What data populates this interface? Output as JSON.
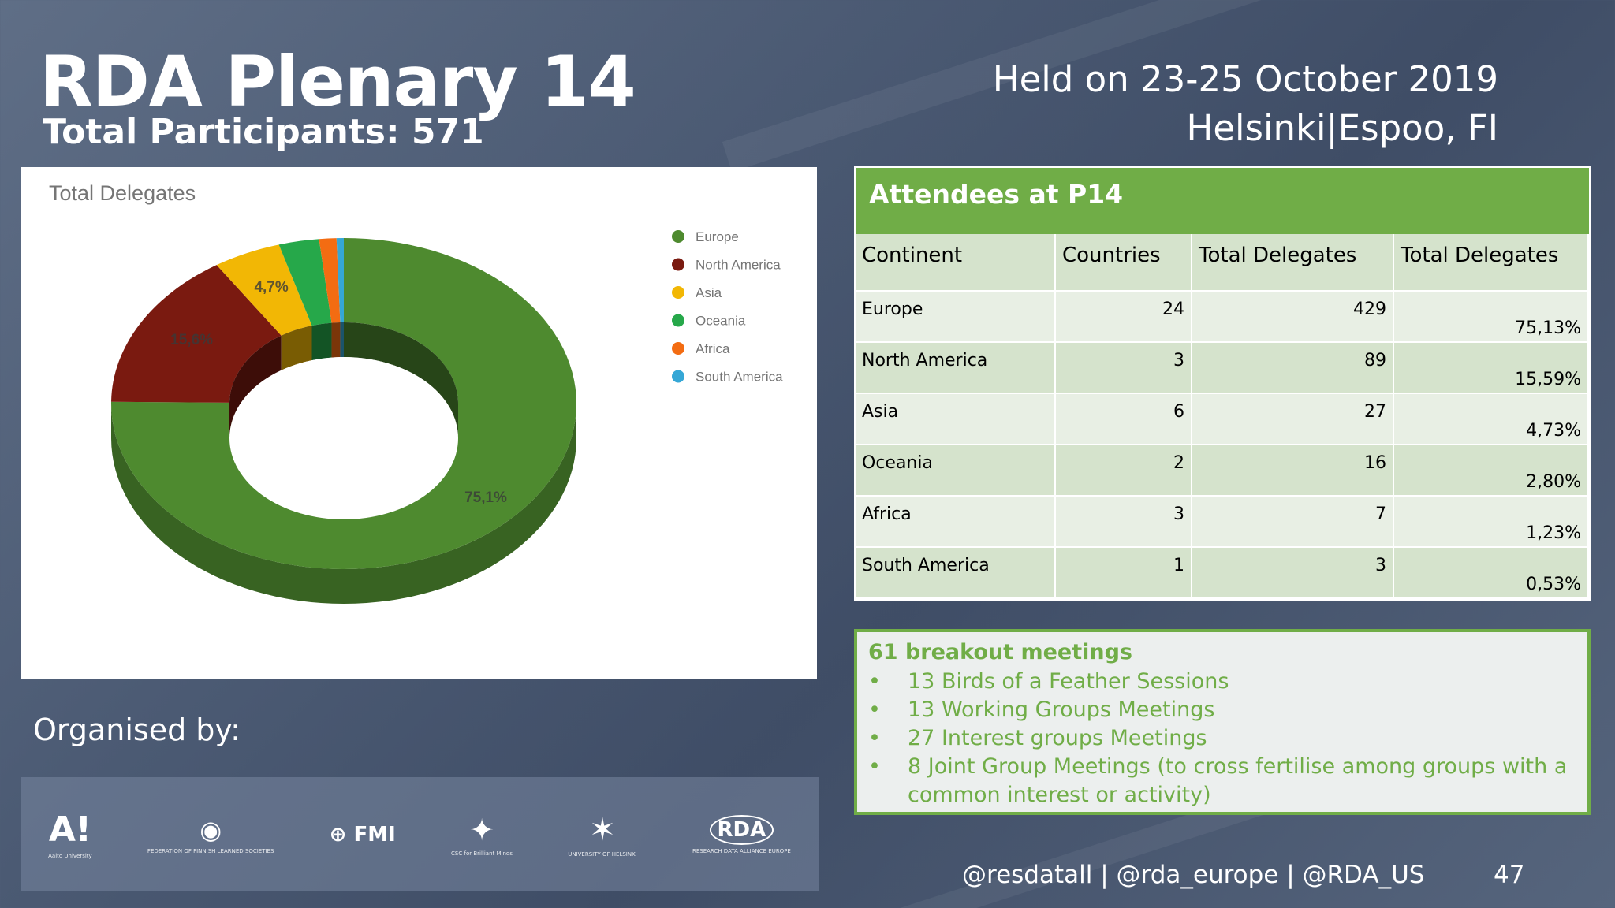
{
  "slide": {
    "title": "RDA Plenary 14",
    "subtitle": "Total Participants: 571",
    "held_on": "Held on 23-25 October 2019",
    "location": "Helsinki|Espoo, FI",
    "organised_by": "Organised by:",
    "footer_handles": "@resdatall | @rda_europe | @RDA_US",
    "page_number": "47"
  },
  "chart_data": {
    "type": "pie",
    "title": "Total Delegates",
    "categories": [
      "Europe",
      "North America",
      "Asia",
      "Oceania",
      "Africa",
      "South America"
    ],
    "values": [
      75.1,
      15.6,
      4.7,
      2.8,
      1.2,
      0.5
    ],
    "data_labels": [
      "75,1%",
      "15,6%",
      "4,7%",
      "",
      "",
      ""
    ],
    "colors": [
      "#4e8a2f",
      "#7a1a10",
      "#f2b705",
      "#26a84a",
      "#f36c12",
      "#35a7d6"
    ],
    "legend_position": "top-right"
  },
  "table": {
    "title": "Attendees at P14",
    "headers": [
      "Continent",
      "Countries",
      "Total Delegates",
      "Total Delegates"
    ],
    "rows": [
      {
        "continent": "Europe",
        "countries": "24",
        "delegates": "429",
        "percent": "75,13%"
      },
      {
        "continent": "North America",
        "countries": "3",
        "delegates": "89",
        "percent": "15,59%"
      },
      {
        "continent": "Asia",
        "countries": "6",
        "delegates": "27",
        "percent": "4,73%"
      },
      {
        "continent": "Oceania",
        "countries": "2",
        "delegates": "16",
        "percent": "2,80%"
      },
      {
        "continent": "Africa",
        "countries": "3",
        "delegates": "7",
        "percent": "1,23%"
      },
      {
        "continent": "South America",
        "countries": "1",
        "delegates": "3",
        "percent": "0,53%"
      }
    ]
  },
  "meetings": {
    "title": "61 breakout meetings",
    "items": [
      "13 Birds of a Feather Sessions",
      "13 Working Groups Meetings",
      "27 Interest groups Meetings",
      "8 Joint Group Meetings (to cross fertilise among groups with a common interest or activity)"
    ]
  },
  "logos": [
    {
      "mark": "A!",
      "caption": "Aalto University",
      "icon": "aalto-logo"
    },
    {
      "mark": "◉",
      "caption": "FEDERATION OF FINNISH LEARNED SOCIETIES",
      "icon": "federation-logo"
    },
    {
      "mark": "⊕ FMI",
      "caption": "",
      "icon": "fmi-logo"
    },
    {
      "mark": "✦",
      "caption": "CSC for Brilliant Minds",
      "icon": "csc-logo"
    },
    {
      "mark": "✶",
      "caption": "UNIVERSITY OF HELSINKI",
      "icon": "helsinki-logo"
    },
    {
      "mark": "RDA",
      "caption": "RESEARCH DATA ALLIANCE EUROPE",
      "icon": "rda-logo"
    }
  ]
}
